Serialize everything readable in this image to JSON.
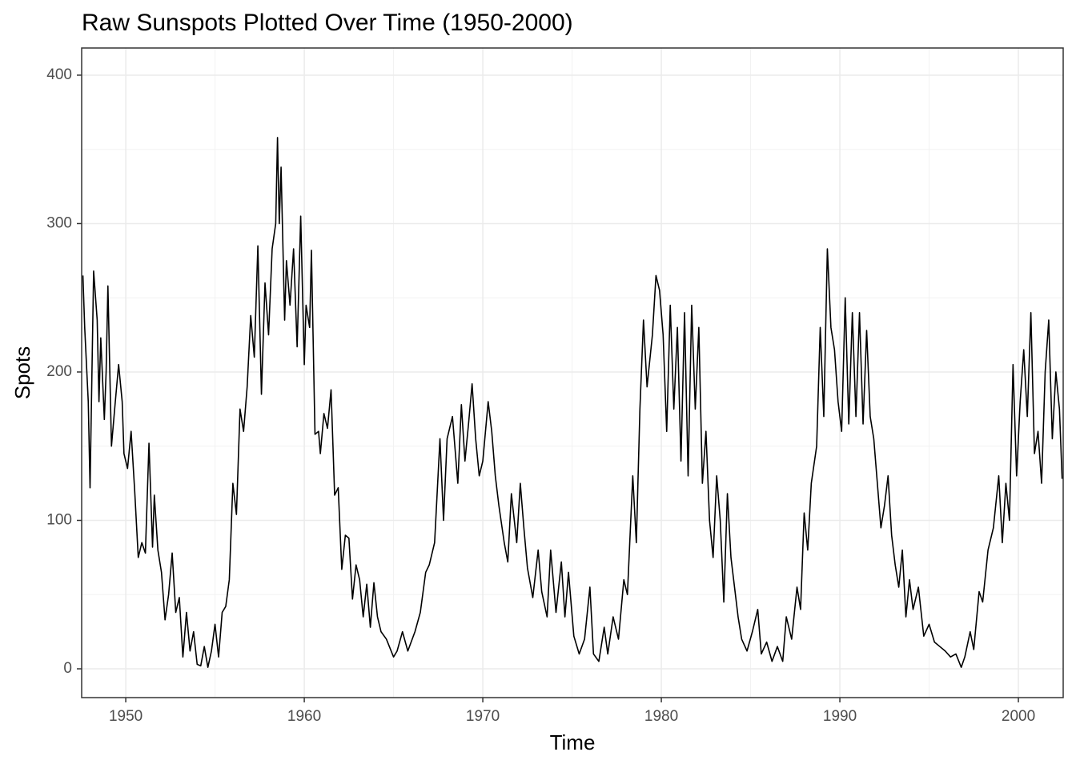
{
  "chart_data": {
    "type": "line",
    "title": "Raw Sunspots Plotted Over Time (1950-2000)",
    "x_label": "Time",
    "y_label": "Spots",
    "color": "#000000",
    "grid": true,
    "xlim": [
      1947.53,
      2002.51
    ],
    "ylim": [
      -19.4,
      418.3
    ],
    "xticks": [
      1950,
      1960,
      1970,
      1980,
      1990,
      2000
    ],
    "xminor": [
      1955,
      1965,
      1975,
      1985,
      1995
    ],
    "yticks": [
      0,
      100,
      200,
      300,
      400
    ],
    "yminor": [
      50,
      150,
      250,
      350
    ],
    "x": [
      1947.6,
      1947.7,
      1947.9,
      1948.0,
      1948.2,
      1948.4,
      1948.5,
      1948.6,
      1948.8,
      1948.9,
      1949.0,
      1949.2,
      1949.4,
      1949.6,
      1949.8,
      1949.9,
      1950.1,
      1950.3,
      1950.5,
      1950.7,
      1950.9,
      1951.1,
      1951.3,
      1951.5,
      1951.6,
      1951.8,
      1952.0,
      1952.2,
      1952.4,
      1952.6,
      1952.8,
      1953.0,
      1953.2,
      1953.4,
      1953.6,
      1953.8,
      1954.0,
      1954.2,
      1954.4,
      1954.6,
      1954.8,
      1955.0,
      1955.2,
      1955.4,
      1955.6,
      1955.8,
      1956.0,
      1956.2,
      1956.4,
      1956.6,
      1956.8,
      1957.0,
      1957.2,
      1957.4,
      1957.6,
      1957.8,
      1958.0,
      1958.2,
      1958.4,
      1958.5,
      1958.6,
      1958.7,
      1958.9,
      1959.0,
      1959.2,
      1959.4,
      1959.6,
      1959.8,
      1960.0,
      1960.1,
      1960.3,
      1960.4,
      1960.6,
      1960.8,
      1960.9,
      1961.1,
      1961.3,
      1961.5,
      1961.7,
      1961.9,
      1962.1,
      1962.3,
      1962.5,
      1962.7,
      1962.9,
      1963.1,
      1963.3,
      1963.5,
      1963.7,
      1963.9,
      1964.1,
      1964.3,
      1964.6,
      1965.0,
      1965.2,
      1965.5,
      1965.8,
      1966.2,
      1966.5,
      1966.8,
      1967.0,
      1967.3,
      1967.6,
      1967.8,
      1968.0,
      1968.3,
      1968.6,
      1968.8,
      1969.0,
      1969.2,
      1969.4,
      1969.6,
      1969.8,
      1970.0,
      1970.3,
      1970.5,
      1970.7,
      1970.9,
      1971.2,
      1971.4,
      1971.6,
      1971.9,
      1972.1,
      1972.3,
      1972.5,
      1972.8,
      1973.1,
      1973.3,
      1973.6,
      1973.8,
      1974.1,
      1974.4,
      1974.6,
      1974.8,
      1975.1,
      1975.4,
      1975.7,
      1976.0,
      1976.2,
      1976.5,
      1976.8,
      1977.0,
      1977.3,
      1977.6,
      1977.9,
      1978.1,
      1978.4,
      1978.6,
      1978.8,
      1979.0,
      1979.2,
      1979.5,
      1979.7,
      1979.9,
      1980.1,
      1980.3,
      1980.5,
      1980.7,
      1980.9,
      1981.1,
      1981.3,
      1981.5,
      1981.7,
      1981.9,
      1982.1,
      1982.3,
      1982.5,
      1982.7,
      1982.9,
      1983.1,
      1983.3,
      1983.5,
      1983.7,
      1983.9,
      1984.1,
      1984.3,
      1984.5,
      1984.8,
      1985.1,
      1985.4,
      1985.6,
      1985.9,
      1986.2,
      1986.5,
      1986.8,
      1987.0,
      1987.3,
      1987.6,
      1987.8,
      1988.0,
      1988.2,
      1988.4,
      1988.7,
      1988.9,
      1989.1,
      1989.3,
      1989.5,
      1989.7,
      1989.9,
      1990.1,
      1990.3,
      1990.5,
      1990.7,
      1990.9,
      1991.1,
      1991.3,
      1991.5,
      1991.7,
      1991.9,
      1992.1,
      1992.3,
      1992.5,
      1992.7,
      1992.9,
      1993.1,
      1993.3,
      1993.5,
      1993.7,
      1993.9,
      1994.1,
      1994.4,
      1994.7,
      1995.0,
      1995.3,
      1995.6,
      1995.9,
      1996.2,
      1996.5,
      1996.8,
      1997.0,
      1997.3,
      1997.5,
      1997.8,
      1998.0,
      1998.3,
      1998.6,
      1998.9,
      1999.1,
      1999.3,
      1999.5,
      1999.7,
      1999.9,
      2000.1,
      2000.3,
      2000.5,
      2000.7,
      2000.9,
      2001.1,
      2001.3,
      2001.5,
      2001.7,
      2001.9,
      2002.1,
      2002.3,
      2002.45
    ],
    "values": [
      265,
      230,
      180,
      122,
      268,
      235,
      180,
      223,
      168,
      200,
      258,
      150,
      178,
      205,
      180,
      145,
      135,
      160,
      120,
      75,
      85,
      78,
      152,
      82,
      117,
      80,
      65,
      33,
      50,
      78,
      38,
      48,
      8,
      38,
      12,
      25,
      3,
      2,
      15,
      1,
      12,
      30,
      8,
      38,
      42,
      60,
      125,
      104,
      175,
      160,
      190,
      238,
      210,
      285,
      185,
      260,
      225,
      283,
      300,
      358,
      300,
      338,
      235,
      275,
      245,
      283,
      217,
      305,
      205,
      245,
      230,
      282,
      158,
      160,
      145,
      172,
      162,
      188,
      117,
      122,
      67,
      90,
      88,
      47,
      70,
      60,
      35,
      57,
      28,
      58,
      35,
      25,
      20,
      8,
      12,
      25,
      12,
      25,
      38,
      65,
      70,
      85,
      155,
      100,
      155,
      170,
      125,
      178,
      140,
      165,
      192,
      155,
      130,
      140,
      180,
      160,
      130,
      110,
      85,
      72,
      118,
      85,
      125,
      95,
      68,
      48,
      80,
      52,
      35,
      80,
      38,
      72,
      35,
      65,
      22,
      10,
      20,
      55,
      10,
      5,
      28,
      10,
      35,
      20,
      60,
      50,
      130,
      85,
      175,
      235,
      190,
      225,
      265,
      255,
      225,
      160,
      245,
      175,
      230,
      140,
      240,
      130,
      245,
      175,
      230,
      125,
      160,
      100,
      75,
      130,
      100,
      45,
      118,
      75,
      55,
      35,
      20,
      12,
      25,
      40,
      10,
      18,
      5,
      15,
      5,
      35,
      20,
      55,
      40,
      105,
      80,
      125,
      150,
      230,
      170,
      283,
      230,
      215,
      180,
      160,
      250,
      165,
      240,
      170,
      240,
      165,
      228,
      170,
      155,
      125,
      95,
      110,
      130,
      90,
      70,
      55,
      80,
      35,
      60,
      40,
      55,
      22,
      30,
      18,
      15,
      12,
      8,
      10,
      1,
      8,
      25,
      13,
      52,
      45,
      80,
      95,
      130,
      85,
      125,
      100,
      205,
      130,
      180,
      215,
      170,
      240,
      145,
      160,
      125,
      200,
      235,
      155,
      200,
      175,
      128
    ]
  }
}
